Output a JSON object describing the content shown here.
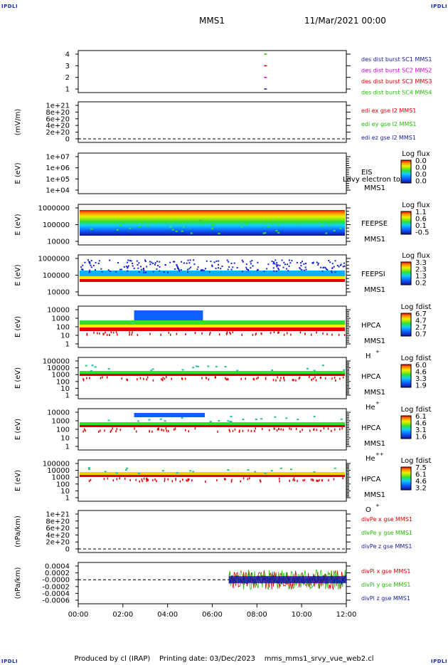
{
  "header": {
    "mission": "MMS1",
    "date": "11/Mar/2021 00:00",
    "corner": "IPDLI"
  },
  "footer": {
    "producer": "Produced by cl (IRAP)",
    "printing": "Printing date: 03/Dec/2023",
    "file": "mms_mms1_srvy_vue_web2.cl"
  },
  "colors": {
    "red": "#e00000",
    "green": "#20c000",
    "blue": "#1a1aa0",
    "magenta": "#d000d0",
    "axis": "#000000"
  },
  "time_axis": {
    "labels": [
      "00:00",
      "02:00",
      "04:00",
      "06:00",
      "08:00",
      "10:00",
      "12:00"
    ]
  },
  "chart_data": [
    {
      "type": "line",
      "id": "burst",
      "yticks": [
        "4",
        "3",
        "2",
        "1"
      ],
      "ylabel": "",
      "legend": [
        {
          "text": "des dist burst SC1 MMS1",
          "color": "#1a1aa0"
        },
        {
          "text": "des dist burst SC2 MMS2",
          "color": "#d000d0"
        },
        {
          "text": "des dist burst SC3 MMS3",
          "color": "#e00000"
        },
        {
          "text": "des dist burst SC4 MMS4",
          "color": "#20c000"
        }
      ],
      "series": [
        {
          "x": [
            "08:21"
          ],
          "values": [
            4
          ]
        },
        {
          "x": [
            "08:21"
          ],
          "values": [
            3
          ]
        },
        {
          "x": [
            "08:21"
          ],
          "values": [
            2
          ]
        },
        {
          "x": [
            "08:21"
          ],
          "values": [
            1
          ]
        }
      ]
    },
    {
      "type": "line",
      "id": "edi",
      "ylabel": "(mV/m)",
      "yticks": [
        "1e+21",
        "8e+20",
        "6e+20",
        "4e+20",
        "2e+20",
        "0"
      ],
      "legend": [
        {
          "text": "edi ex gse l2 MMS1",
          "color": "#e00000"
        },
        {
          "text": "edi ey gse l2 MMS1",
          "color": "#20c000"
        },
        {
          "text": "edi ez gse l2 MMS1",
          "color": "#1a1aa0"
        }
      ]
    },
    {
      "type": "heatmap",
      "id": "eis",
      "ylabel": "E (eV)",
      "yticks": [
        "1e+07",
        "1e+06",
        "1e+05",
        "1e+04"
      ],
      "label": "EIS",
      "sc": "MMS1",
      "overlay": "Ldvy electron tof",
      "cbar_title": "Log flux",
      "cbar_ticks": [
        "0.0",
        "0.0",
        "0.0",
        "0.0"
      ]
    },
    {
      "type": "heatmap",
      "id": "feepse",
      "ylabel": "E (eV)",
      "yticks": [
        "1000000",
        "100000",
        "10000"
      ],
      "label": "FEEPSE",
      "sc": "MMS1",
      "cbar_title": "Log flux",
      "cbar_ticks": [
        "1.1",
        "0.6",
        "0.1",
        "-0.5"
      ]
    },
    {
      "type": "heatmap",
      "id": "feepsi",
      "ylabel": "E (eV)",
      "yticks": [
        "1000000",
        "100000",
        "10000"
      ],
      "label": "FEEPSI",
      "sc": "MMS1",
      "cbar_title": "Log flux",
      "cbar_ticks": [
        "3.3",
        "2.3",
        "1.3",
        "0.2"
      ]
    },
    {
      "type": "heatmap",
      "id": "hpca_h",
      "ylabel": "E (eV)",
      "yticks": [
        "10000",
        "1000",
        "100",
        "10",
        "1"
      ],
      "label": "HPCA",
      "sc": "MMS1",
      "species": "H",
      "charge": "+",
      "cbar_title": "Log fdist",
      "cbar_ticks": [
        "6.7",
        "4.7",
        "2.7",
        "0.7"
      ]
    },
    {
      "type": "heatmap",
      "id": "hpca_he",
      "ylabel": "E (eV)",
      "yticks": [
        "100000",
        "10000",
        "1000",
        "100",
        "10",
        "1"
      ],
      "label": "HPCA",
      "sc": "MMS1",
      "species": "He",
      "charge": "+",
      "cbar_title": "Log fdist",
      "cbar_ticks": [
        "6.0",
        "4.6",
        "3.3",
        "1.9"
      ]
    },
    {
      "type": "heatmap",
      "id": "hpca_he2",
      "ylabel": "E (eV)",
      "yticks": [
        "10000",
        "1000",
        "100",
        "10",
        "1"
      ],
      "label": "HPCA",
      "sc": "MMS1",
      "species": "He",
      "charge": "++",
      "cbar_title": "Log fdist",
      "cbar_ticks": [
        "6.1",
        "4.6",
        "3.1",
        "1.6"
      ]
    },
    {
      "type": "heatmap",
      "id": "hpca_o",
      "ylabel": "E (eV)",
      "yticks": [
        "100000",
        "10000",
        "1000",
        "100",
        "10",
        "1"
      ],
      "label": "HPCA",
      "sc": "MMS1",
      "species": "O",
      "charge": "+",
      "cbar_title": "Log fdist",
      "cbar_ticks": [
        "7.5",
        "6.1",
        "4.6",
        "3.2"
      ]
    },
    {
      "type": "line",
      "id": "divpe",
      "ylabel": "(nPa/km)",
      "yticks": [
        "1e+21",
        "8e+20",
        "6e+20",
        "4e+20",
        "2e+20",
        "0"
      ],
      "legend": [
        {
          "text": "divPe x gse MMS1",
          "color": "#e00000"
        },
        {
          "text": "divPe y gse MMS1",
          "color": "#20c000"
        },
        {
          "text": "divPe z gse MMS1",
          "color": "#1a1aa0"
        }
      ]
    },
    {
      "type": "line",
      "id": "divpi",
      "ylabel": "(nPa/km)",
      "yticks": [
        "0.0004",
        "0.0002",
        "-0.0000",
        "-0.0002",
        "-0.0004",
        "-0.0006"
      ],
      "legend": [
        {
          "text": "divPi x gse MMS1",
          "color": "#e00000"
        },
        {
          "text": "divPi y gse MMS1",
          "color": "#20c000"
        },
        {
          "text": "divPi z gse MMS1",
          "color": "#1a1aa0"
        }
      ]
    }
  ]
}
